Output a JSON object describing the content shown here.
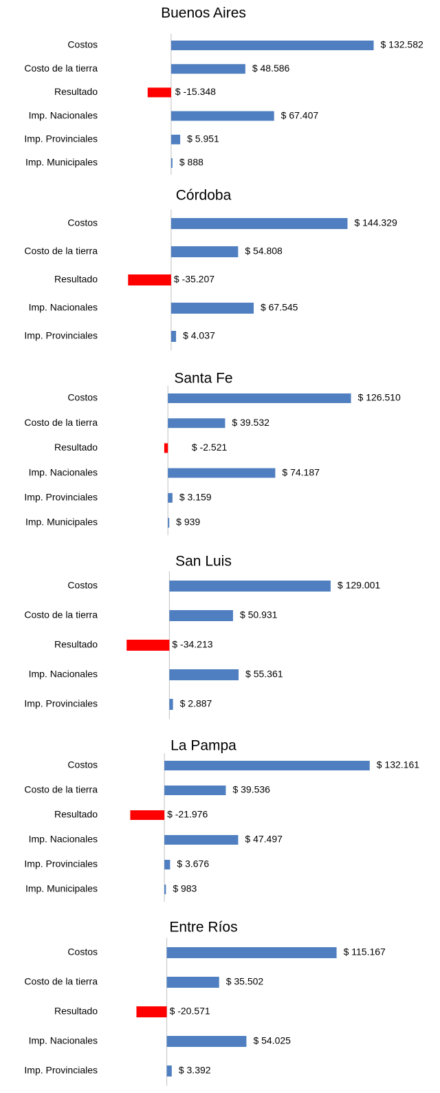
{
  "chart_data": [
    {
      "type": "barh",
      "title": "Buenos Aires",
      "color": "#4f7fc0",
      "negative_color": "#ff0000",
      "categories": [
        "Costos",
        "Costo de la tierra",
        "Resultado",
        "Imp. Nacionales",
        "Imp. Provinciales",
        "Imp. Municipales"
      ],
      "values": [
        132582,
        48586,
        -15348,
        67407,
        5951,
        888
      ],
      "value_labels": [
        "$ 132.582",
        "$ 48.586",
        "$ -15.348",
        "$ 67.407",
        "$ 5.951",
        "$ 888"
      ],
      "xlim": [
        -40000,
        140000
      ]
    },
    {
      "type": "barh",
      "title": "Córdoba",
      "color": "#4f7fc0",
      "negative_color": "#ff0000",
      "categories": [
        "Costos",
        "Costo de la tierra",
        "Resultado",
        "Imp. Nacionales",
        "Imp. Provinciales"
      ],
      "values": [
        144329,
        54808,
        -35207,
        67545,
        4037
      ],
      "value_labels": [
        "$ 144.329",
        "$ 54.808",
        "$ -35.207",
        "$ 67.545",
        "$ 4.037"
      ],
      "xlim": [
        -50000,
        175000
      ]
    },
    {
      "type": "barh",
      "title": "Santa Fe",
      "color": "#4f7fc0",
      "negative_color": "#ff0000",
      "categories": [
        "Costos",
        "Costo de la tierra",
        "Resultado",
        "Imp. Nacionales",
        "Imp. Provinciales",
        "Imp. Municipales"
      ],
      "values": [
        126510,
        39532,
        -2521,
        74187,
        3159,
        939
      ],
      "value_labels": [
        "$ 126.510",
        "$ 39.532",
        "$ -2.521",
        "$ 74.187",
        "$ 3.159",
        "$ 939"
      ],
      "xlim": [
        -40000,
        150000
      ]
    },
    {
      "type": "barh",
      "title": "San Luis",
      "color": "#4f7fc0",
      "negative_color": "#ff0000",
      "categories": [
        "Costos",
        "Costo de la tierra",
        "Resultado",
        "Imp. Nacionales",
        "Imp. Provinciales"
      ],
      "values": [
        129001,
        50931,
        -34213,
        55361,
        2887
      ],
      "value_labels": [
        "$ 129.001",
        "$ 50.931",
        "$ -34.213",
        "$ 55.361",
        "$ 2.887"
      ],
      "xlim": [
        -47500,
        172500
      ]
    },
    {
      "type": "barh",
      "title": "La Pampa",
      "color": "#4f7fc0",
      "negative_color": "#ff0000",
      "categories": [
        "Costos",
        "Costo de la tierra",
        "Resultado",
        "Imp. Nacionales",
        "Imp. Provinciales",
        "Imp. Municipales"
      ],
      "values": [
        132161,
        39536,
        -21976,
        47497,
        3676,
        983
      ],
      "value_labels": [
        "$ 132.161",
        "$ 39.536",
        "$ -21.976",
        "$ 47.497",
        "$ 3.676",
        "$ 983"
      ],
      "xlim": [
        -35000,
        142000
      ]
    },
    {
      "type": "barh",
      "title": "Entre Ríos",
      "color": "#4f7fc0",
      "negative_color": "#ff0000",
      "categories": [
        "Costos",
        "Costo de la tierra",
        "Resultado",
        "Imp. Nacionales",
        "Imp. Provinciales"
      ],
      "values": [
        115167,
        35502,
        -20571,
        54025,
        3392
      ],
      "value_labels": [
        "$ 115.167",
        "$ 35.502",
        "$ -20.571",
        "$ 54.025",
        "$ 3.392"
      ],
      "xlim": [
        -38500,
        148000
      ]
    }
  ]
}
